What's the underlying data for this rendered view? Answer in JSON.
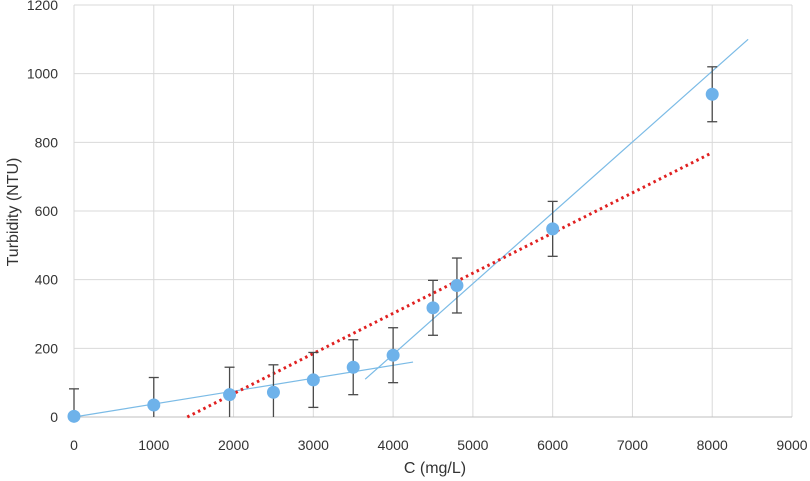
{
  "chart_data": {
    "type": "scatter",
    "title": "",
    "xlabel": "C (mg/L)",
    "ylabel": "Turbidity (NTU)",
    "xlim": [
      0,
      9000
    ],
    "ylim": [
      0,
      1200
    ],
    "x_ticks": [
      0,
      1000,
      2000,
      3000,
      4000,
      5000,
      6000,
      7000,
      8000,
      9000
    ],
    "y_ticks": [
      0,
      200,
      400,
      600,
      800,
      1000,
      1200
    ],
    "grid": true,
    "legend": "none",
    "colors": {
      "points": "#6eb2ea",
      "fit_lines": "#7bbbe6",
      "dotted_fit": "#e02020",
      "error_bars": "#4a4a4a",
      "grid": "#d9d9d9"
    },
    "series": [
      {
        "type": "scatter",
        "x": [
          0,
          1000,
          1950,
          2500,
          3000,
          3500,
          4000,
          4500,
          4800,
          6000,
          8000
        ],
        "y": [
          2,
          35,
          65,
          72,
          108,
          145,
          180,
          318,
          383,
          548,
          940
        ],
        "error": [
          80,
          80,
          80,
          80,
          80,
          80,
          80,
          80,
          80,
          80,
          80
        ]
      },
      {
        "type": "line",
        "style": "solid",
        "x": [
          0,
          4250
        ],
        "y": [
          0,
          160
        ]
      },
      {
        "type": "line",
        "style": "solid",
        "x": [
          3650,
          8450
        ],
        "y": [
          110,
          1100
        ]
      },
      {
        "type": "line",
        "style": "dotted",
        "x": [
          1420,
          8000
        ],
        "y": [
          0,
          770
        ]
      }
    ]
  }
}
